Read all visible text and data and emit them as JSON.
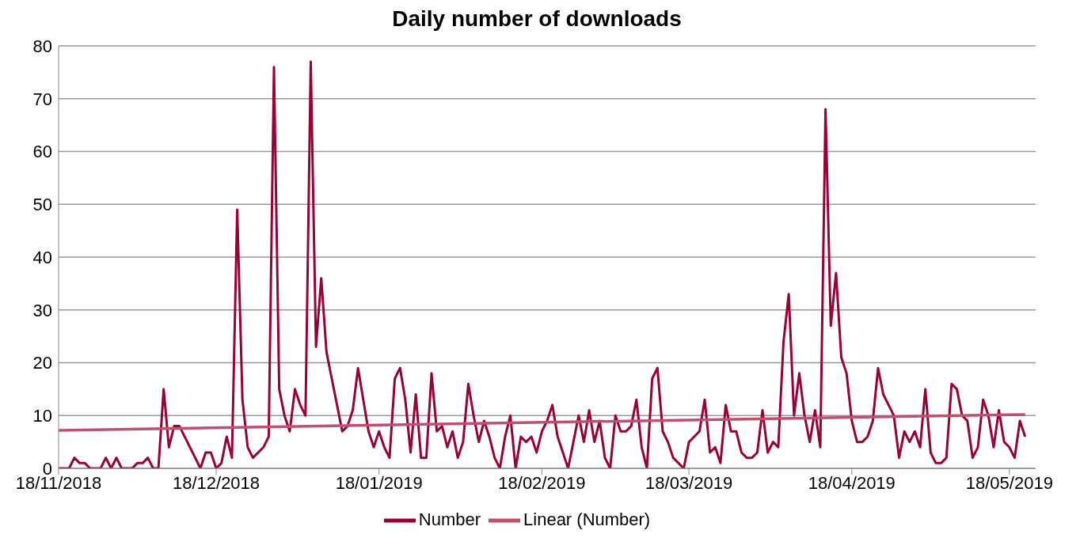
{
  "chart_data": {
    "type": "line",
    "title": "Daily number of downloads",
    "x": [
      "2018-11-18",
      "2018-11-20",
      "2018-11-21",
      "2018-11-22",
      "2018-11-23",
      "2018-11-24",
      "2018-11-26",
      "2018-11-27",
      "2018-11-28",
      "2018-11-29",
      "2018-11-30",
      "2018-12-02",
      "2018-12-03",
      "2018-12-04",
      "2018-12-05",
      "2018-12-06",
      "2018-12-07",
      "2018-12-08",
      "2018-12-09",
      "2018-12-10",
      "2018-12-11",
      "2018-12-15",
      "2018-12-16",
      "2018-12-17",
      "2018-12-18",
      "2018-12-19",
      "2018-12-20",
      "2018-12-21",
      "2018-12-22",
      "2018-12-23",
      "2018-12-24",
      "2018-12-25",
      "2018-12-27",
      "2018-12-28",
      "2018-12-29",
      "2018-12-30",
      "2018-12-31",
      "2019-01-01",
      "2019-01-02",
      "2019-01-03",
      "2019-01-04",
      "2019-01-05",
      "2019-01-06",
      "2019-01-07",
      "2019-01-08",
      "2019-01-09",
      "2019-01-10",
      "2019-01-11",
      "2019-01-12",
      "2019-01-13",
      "2019-01-14",
      "2019-01-15",
      "2019-01-16",
      "2019-01-17",
      "2019-01-18",
      "2019-01-19",
      "2019-01-20",
      "2019-01-21",
      "2019-01-22",
      "2019-01-23",
      "2019-01-24",
      "2019-01-25",
      "2019-01-26",
      "2019-01-27",
      "2019-01-28",
      "2019-01-29",
      "2019-01-30",
      "2019-01-31",
      "2019-02-01",
      "2019-02-02",
      "2019-02-03",
      "2019-02-04",
      "2019-02-05",
      "2019-02-06",
      "2019-02-07",
      "2019-02-08",
      "2019-02-09",
      "2019-02-10",
      "2019-02-11",
      "2019-02-12",
      "2019-02-13",
      "2019-02-14",
      "2019-02-15",
      "2019-02-16",
      "2019-02-17",
      "2019-02-18",
      "2019-02-19",
      "2019-02-20",
      "2019-02-21",
      "2019-02-22",
      "2019-02-23",
      "2019-02-24",
      "2019-02-25",
      "2019-02-26",
      "2019-02-27",
      "2019-02-28",
      "2019-03-01",
      "2019-03-02",
      "2019-03-03",
      "2019-03-04",
      "2019-03-05",
      "2019-03-06",
      "2019-03-07",
      "2019-03-08",
      "2019-03-09",
      "2019-03-10",
      "2019-03-11",
      "2019-03-12",
      "2019-03-13",
      "2019-03-14",
      "2019-03-15",
      "2019-03-16",
      "2019-03-17",
      "2019-03-18",
      "2019-03-19",
      "2019-03-20",
      "2019-03-21",
      "2019-03-22",
      "2019-03-23",
      "2019-03-24",
      "2019-03-25",
      "2019-03-26",
      "2019-03-27",
      "2019-03-28",
      "2019-03-29",
      "2019-03-30",
      "2019-03-31",
      "2019-04-01",
      "2019-04-02",
      "2019-04-03",
      "2019-04-04",
      "2019-04-05",
      "2019-04-06",
      "2019-04-07",
      "2019-04-08",
      "2019-04-09",
      "2019-04-10",
      "2019-04-11",
      "2019-04-12",
      "2019-04-13",
      "2019-04-14",
      "2019-04-15",
      "2019-04-16",
      "2019-04-17",
      "2019-04-18",
      "2019-04-19",
      "2019-04-20",
      "2019-04-21",
      "2019-04-22",
      "2019-04-23",
      "2019-04-24",
      "2019-04-25",
      "2019-04-26",
      "2019-04-27",
      "2019-04-28",
      "2019-04-29",
      "2019-04-30",
      "2019-05-01",
      "2019-05-02",
      "2019-05-03",
      "2019-05-04",
      "2019-05-05",
      "2019-05-06",
      "2019-05-07",
      "2019-05-08",
      "2019-05-09",
      "2019-05-10",
      "2019-05-11",
      "2019-05-12",
      "2019-05-13",
      "2019-05-14",
      "2019-05-15",
      "2019-05-16",
      "2019-05-17",
      "2019-05-18",
      "2019-05-19",
      "2019-05-20",
      "2019-05-21"
    ],
    "series": [
      {
        "name": "Number",
        "color": "#990033",
        "values": [
          0,
          0,
          2,
          1,
          1,
          0,
          0,
          2,
          0,
          2,
          0,
          0,
          1,
          1,
          2,
          0,
          0,
          15,
          4,
          8,
          8,
          0,
          3,
          3,
          0,
          1,
          6,
          2,
          49,
          13,
          4,
          2,
          4,
          6,
          76,
          15,
          10,
          7,
          15,
          12,
          10,
          77,
          23,
          36,
          22,
          17,
          12,
          7,
          8,
          11,
          19,
          13,
          7,
          4,
          7,
          4,
          2,
          17,
          19,
          13,
          3,
          14,
          2,
          2,
          18,
          7,
          8,
          4,
          7,
          2,
          5,
          16,
          10,
          5,
          9,
          6,
          2,
          0,
          6,
          10,
          0,
          6,
          5,
          6,
          3,
          7,
          9,
          12,
          6,
          3,
          0,
          5,
          10,
          5,
          11,
          5,
          9,
          2,
          0,
          10,
          7,
          7,
          8,
          13,
          4,
          0,
          17,
          19,
          7,
          5,
          2,
          1,
          0,
          5,
          6,
          7,
          13,
          3,
          4,
          1,
          12,
          7,
          7,
          3,
          2,
          2,
          3,
          11,
          3,
          5,
          4,
          24,
          33,
          10,
          18,
          10,
          5,
          11,
          4,
          68,
          27,
          37,
          21,
          18,
          9,
          5,
          5,
          6,
          9,
          19,
          14,
          12,
          10,
          2,
          7,
          5,
          7,
          4,
          15,
          3,
          1,
          1,
          2,
          16,
          15,
          10,
          9,
          2,
          4,
          13,
          10,
          4,
          11,
          5,
          4,
          2,
          9,
          6
        ]
      },
      {
        "name": "Linear (Number)",
        "color": "#c0506e",
        "x": [
          "2018-11-18",
          "2019-05-21"
        ],
        "values": [
          7.2,
          10.2
        ]
      }
    ],
    "xlim": [
      "2018-11-18",
      "2019-05-23"
    ],
    "xticks": [
      {
        "value": "2018-11-18",
        "label": "18/11/2018"
      },
      {
        "value": "2018-12-18",
        "label": "18/12/2018"
      },
      {
        "value": "2019-01-18",
        "label": "18/01/2019"
      },
      {
        "value": "2019-02-18",
        "label": "18/02/2019"
      },
      {
        "value": "2019-03-18",
        "label": "18/03/2019"
      },
      {
        "value": "2019-04-18",
        "label": "18/04/2019"
      },
      {
        "value": "2019-05-18",
        "label": "18/05/2019"
      }
    ],
    "ylim": [
      0,
      80
    ],
    "yticks": [
      0,
      10,
      20,
      30,
      40,
      50,
      60,
      70,
      80
    ],
    "grid": "y",
    "legend": "bottom",
    "marker": "none",
    "line_style": "solid"
  }
}
